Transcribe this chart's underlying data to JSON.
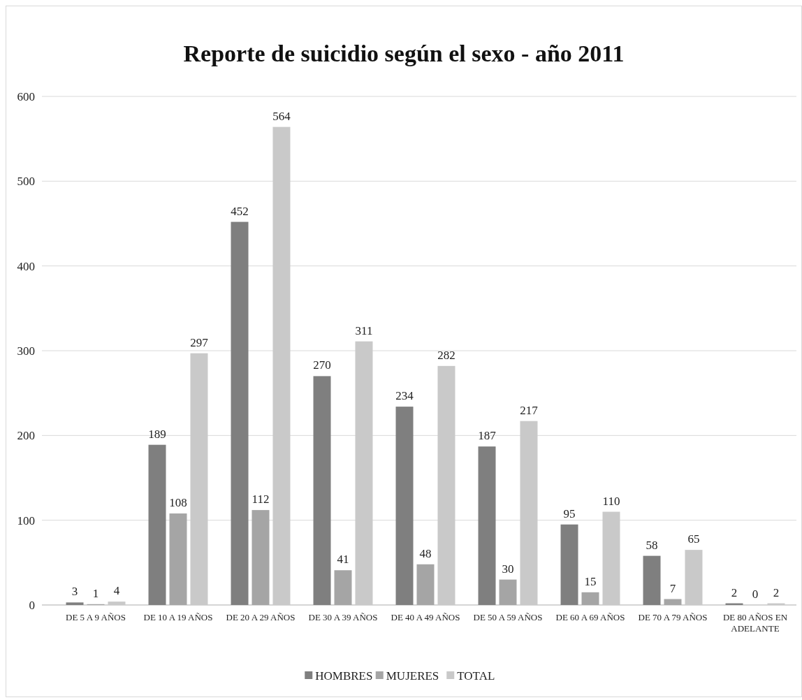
{
  "chart_data": {
    "type": "bar",
    "title": "Reporte de suicidio según el sexo - año 2011",
    "categories": [
      "DE 5 A 9 AÑOS",
      "DE 10 A 19 AÑOS",
      "DE 20 A 29 AÑOS",
      "DE 30 A 39 AÑOS",
      "DE 40 A 49 AÑOS",
      "DE 50 A 59 AÑOS",
      "DE 60 A 69 AÑOS",
      "DE 70 A 79 AÑOS",
      "DE 80 AÑOS EN ADELANTE"
    ],
    "series": [
      {
        "name": "HOMBRES",
        "color": "#7f7f7f",
        "values": [
          3,
          189,
          452,
          270,
          234,
          187,
          95,
          58,
          2
        ]
      },
      {
        "name": "MUJERES",
        "color": "#a5a5a5",
        "values": [
          1,
          108,
          112,
          41,
          48,
          30,
          15,
          7,
          0
        ]
      },
      {
        "name": "TOTAL",
        "color": "#c9c9c9",
        "values": [
          4,
          297,
          564,
          311,
          282,
          217,
          110,
          65,
          2
        ]
      }
    ],
    "ylim": [
      0,
      600
    ],
    "yticks": [
      0,
      100,
      200,
      300,
      400,
      500,
      600
    ],
    "grid": "y",
    "legend": "bottom",
    "data_labels": true
  }
}
